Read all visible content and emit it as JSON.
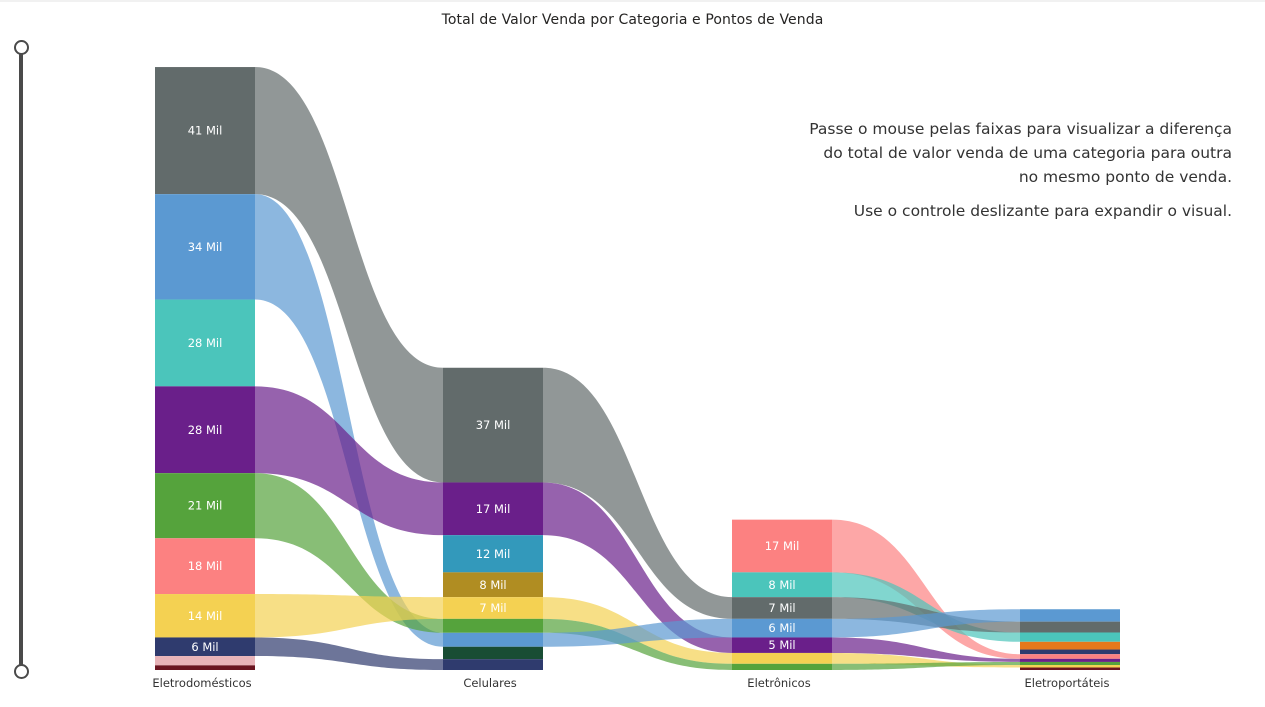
{
  "title": "Total de Valor Venda por Categoria e Pontos de Venda",
  "instructions": {
    "line1": "Passe o mouse pelas faixas para visualizar a diferença",
    "line2": "do total de valor venda de uma categoria para outra",
    "line3": "no mesmo ponto de venda.",
    "line4": "Use o controle deslizante para expandir o visual."
  },
  "colors": {
    "gray": "#626b6b",
    "blue": "#5b99d2",
    "teal": "#4bc5bb",
    "purple": "#6a1f8a",
    "green": "#55a33c",
    "salmon": "#fc8181",
    "yellow": "#f4d152",
    "navy": "#2f3b6e",
    "pink": "#e8b3b8",
    "maroon": "#6a1420",
    "cyan": "#3399bb",
    "olive": "#b08d22",
    "darkgreen": "#194d34",
    "orange": "#e5791d"
  },
  "chart_data": {
    "type": "sankey",
    "title": "Total de Valor Venda por Categoria e Pontos de Venda",
    "unit": "Mil",
    "stages": [
      "Eletrodomésticos",
      "Celulares",
      "Eletrônicos",
      "Eletroportáteis"
    ],
    "stage_segments": [
      [
        {
          "color": "gray",
          "value": 41,
          "label": "41 Mil"
        },
        {
          "color": "blue",
          "value": 34,
          "label": "34 Mil"
        },
        {
          "color": "teal",
          "value": 28,
          "label": "28 Mil"
        },
        {
          "color": "purple",
          "value": 28,
          "label": "28 Mil"
        },
        {
          "color": "green",
          "value": 21,
          "label": "21 Mil"
        },
        {
          "color": "salmon",
          "value": 18,
          "label": "18 Mil"
        },
        {
          "color": "yellow",
          "value": 14,
          "label": "14 Mil"
        },
        {
          "color": "navy",
          "value": 6,
          "label": "6 Mil"
        },
        {
          "color": "pink",
          "value": 3,
          "label": ""
        },
        {
          "color": "maroon",
          "value": 1.5,
          "label": ""
        }
      ],
      [
        {
          "color": "gray",
          "value": 37,
          "label": "37 Mil"
        },
        {
          "color": "purple",
          "value": 17,
          "label": "17 Mil"
        },
        {
          "color": "cyan",
          "value": 12,
          "label": "12 Mil"
        },
        {
          "color": "olive",
          "value": 8,
          "label": "8 Mil"
        },
        {
          "color": "yellow",
          "value": 7,
          "label": "7 Mil"
        },
        {
          "color": "green",
          "value": 4.5,
          "label": ""
        },
        {
          "color": "blue",
          "value": 4.5,
          "label": ""
        },
        {
          "color": "darkgreen",
          "value": 4,
          "label": ""
        },
        {
          "color": "navy",
          "value": 3.5,
          "label": ""
        }
      ],
      [
        {
          "color": "salmon",
          "value": 17,
          "label": "17 Mil"
        },
        {
          "color": "teal",
          "value": 8,
          "label": "8 Mil"
        },
        {
          "color": "gray",
          "value": 7,
          "label": "7 Mil"
        },
        {
          "color": "blue",
          "value": 6,
          "label": "6 Mil"
        },
        {
          "color": "purple",
          "value": 5,
          "label": "5 Mil"
        },
        {
          "color": "yellow",
          "value": 3.5,
          "label": ""
        },
        {
          "color": "green",
          "value": 2,
          "label": ""
        }
      ],
      [
        {
          "color": "blue",
          "value": 4,
          "label": ""
        },
        {
          "color": "gray",
          "value": 3.5,
          "label": ""
        },
        {
          "color": "teal",
          "value": 3,
          "label": ""
        },
        {
          "color": "orange",
          "value": 2.5,
          "label": ""
        },
        {
          "color": "navy",
          "value": 1.5,
          "label": ""
        },
        {
          "color": "salmon",
          "value": 1.5,
          "label": ""
        },
        {
          "color": "purple",
          "value": 1,
          "label": ""
        },
        {
          "color": "green",
          "value": 1,
          "label": ""
        },
        {
          "color": "yellow",
          "value": 0.8,
          "label": ""
        },
        {
          "color": "maroon",
          "value": 0.8,
          "label": ""
        }
      ]
    ]
  }
}
